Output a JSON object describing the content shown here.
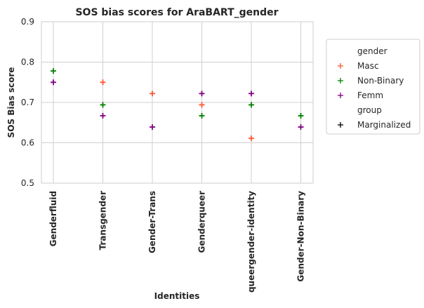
{
  "chart_data": {
    "type": "scatter",
    "title": "SOS bias scores for AraBART_gender",
    "xlabel": "Identities",
    "ylabel": "SOS Bias score",
    "categories": [
      "Genderfluid",
      "Transgender",
      "Gender-Trans",
      "Genderqueer",
      "queergender-identity",
      "Gender-Non-Binary"
    ],
    "ylim": [
      0.5,
      0.9
    ],
    "yticks": [
      "0.5",
      "0.6",
      "0.7",
      "0.8",
      "0.9"
    ],
    "grid": true,
    "legend_position": "right",
    "marker": "plus",
    "series": [
      {
        "name": "Masc",
        "color": "#ff5733",
        "values": [
          null,
          0.75,
          0.722,
          0.694,
          0.611,
          null
        ]
      },
      {
        "name": "Non-Binary",
        "color": "#008000",
        "values": [
          0.778,
          0.694,
          null,
          0.667,
          0.694,
          0.667
        ]
      },
      {
        "name": "Femm",
        "color": "#800080",
        "values": [
          0.75,
          0.667,
          0.639,
          0.722,
          0.722,
          0.639
        ]
      }
    ],
    "legend": {
      "entries": [
        {
          "label": "gender",
          "kind": "header"
        },
        {
          "label": "Masc",
          "kind": "marker",
          "color": "#ff5733"
        },
        {
          "label": "Non-Binary",
          "kind": "marker",
          "color": "#008000"
        },
        {
          "label": "Femm",
          "kind": "marker",
          "color": "#800080"
        },
        {
          "label": "group",
          "kind": "header"
        },
        {
          "label": "Marginalized",
          "kind": "marker",
          "color": "#000000"
        }
      ]
    }
  }
}
